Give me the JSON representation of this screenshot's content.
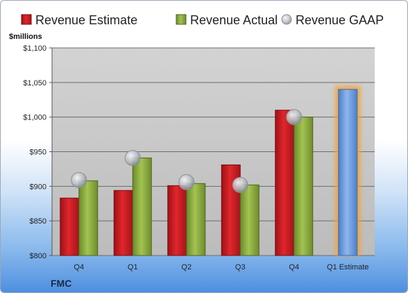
{
  "chart_data": {
    "type": "bar",
    "unit_label": "$millions",
    "company": "FMC",
    "categories": [
      "Q4",
      "Q1",
      "Q2",
      "Q3",
      "Q4",
      "Q1 Estimate"
    ],
    "series": [
      {
        "name": "Revenue Estimate",
        "type": "bar",
        "color": "#cc1f24",
        "values": [
          883,
          894,
          901,
          931,
          1010,
          null
        ]
      },
      {
        "name": "Revenue Actual",
        "type": "bar",
        "color": "#8aaa3c",
        "values": [
          908,
          941,
          904,
          902,
          1000,
          null
        ]
      },
      {
        "name": "Revenue GAAP",
        "type": "marker",
        "color": "#b9bdc4",
        "values": [
          909,
          941,
          906,
          902,
          1000,
          null
        ]
      }
    ],
    "forecast": {
      "category_index": 5,
      "value": 1040,
      "color": "#6a9de0",
      "glow": "#f2a43c"
    },
    "y_axis": {
      "min": 800,
      "max": 1100,
      "ticks": [
        800,
        850,
        900,
        950,
        1000,
        1050,
        1100
      ],
      "tick_labels": [
        "$800",
        "$850",
        "$900",
        "$950",
        "$1,000",
        "$1,050",
        "$1,100"
      ]
    },
    "grid": true,
    "legend_position": "top"
  }
}
